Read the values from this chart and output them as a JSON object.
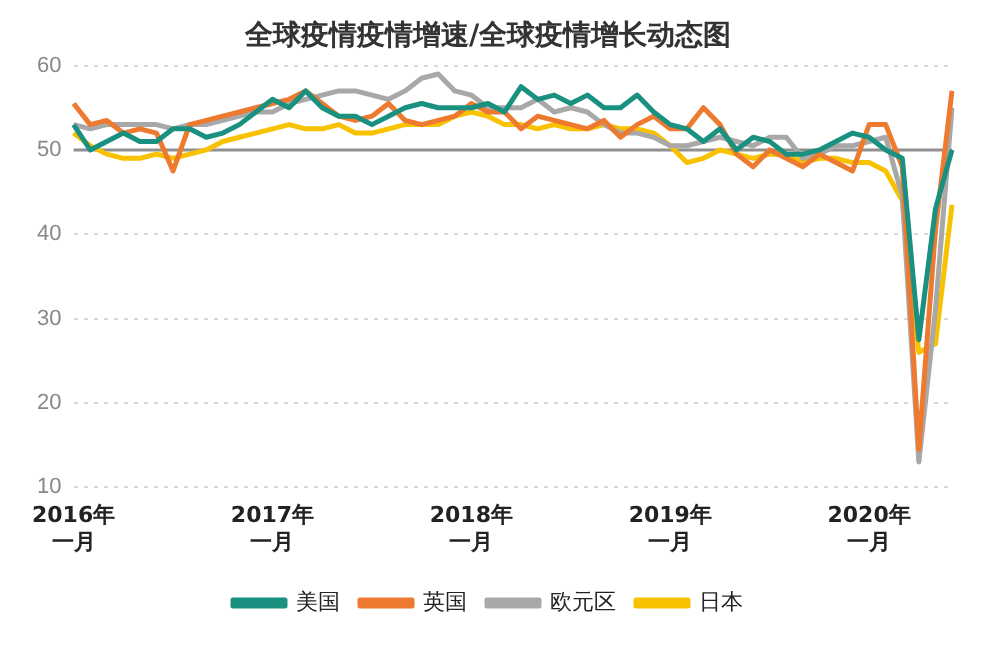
{
  "chart_data": {
    "type": "line",
    "title": "全球疫情疫情增速/全球疫情增长动态图",
    "categories": [
      "2016年一月",
      null,
      null,
      null,
      null,
      null,
      null,
      null,
      null,
      null,
      null,
      null,
      "2017年一月",
      null,
      null,
      null,
      null,
      null,
      null,
      null,
      null,
      null,
      null,
      null,
      "2018年一月",
      null,
      null,
      null,
      null,
      null,
      null,
      null,
      null,
      null,
      null,
      null,
      "2019年一月",
      null,
      null,
      null,
      null,
      null,
      null,
      null,
      null,
      null,
      null,
      null,
      "2020年一月",
      null,
      null,
      null,
      null,
      null
    ],
    "series": [
      {
        "name": "美国",
        "color": "#1a9080",
        "values": [
          53,
          50,
          51,
          52,
          51,
          51,
          52.5,
          52.5,
          51.5,
          52,
          53,
          54.5,
          56,
          55,
          57,
          55,
          54,
          54,
          53,
          54,
          55,
          55.5,
          55,
          55,
          55,
          55.5,
          54.5,
          57.5,
          56,
          56.5,
          55.5,
          56.5,
          55,
          55,
          56.5,
          54.5,
          53,
          52.5,
          51,
          52.5,
          50,
          51.5,
          51,
          49.5,
          49.5,
          50,
          51,
          52,
          51.5,
          50,
          49,
          27.5,
          43,
          50
        ]
      },
      {
        "name": "英国",
        "color": "#ee7a30",
        "values": [
          55.5,
          53,
          53.5,
          52,
          52.5,
          52,
          47.5,
          53,
          53.5,
          54,
          54.5,
          55,
          55.5,
          56,
          57,
          55.5,
          54,
          53.5,
          54,
          55.5,
          53.5,
          53,
          53.5,
          54,
          55.5,
          54.5,
          54.5,
          52.5,
          54,
          53.5,
          53,
          52.5,
          53.5,
          51.5,
          53,
          54,
          52.5,
          52.5,
          55,
          53,
          49.5,
          48,
          50,
          49,
          48,
          49.5,
          48.5,
          47.5,
          53,
          53,
          48,
          14.5,
          40.5,
          57
        ]
      },
      {
        "name": "欧元区",
        "color": "#a8a8a8",
        "values": [
          53,
          52.5,
          53,
          53,
          53,
          53,
          52.5,
          53,
          53,
          53.5,
          54,
          54.5,
          54.5,
          55.5,
          56,
          56.5,
          57,
          57,
          56.5,
          56,
          57,
          58.5,
          59,
          57,
          56.5,
          55,
          55,
          55,
          56,
          54.5,
          55,
          54.5,
          53,
          52,
          52,
          51.5,
          50.5,
          50.5,
          51,
          51.5,
          51,
          50.5,
          51.5,
          51.5,
          49,
          49.5,
          50.5,
          50.5,
          51,
          51.5,
          44.5,
          13,
          31,
          55
        ]
      },
      {
        "name": "日本",
        "color": "#f8c200",
        "values": [
          52,
          50.5,
          49.5,
          49,
          49,
          49.5,
          49,
          49.5,
          50,
          51,
          51.5,
          52,
          52.5,
          53,
          52.5,
          52.5,
          53,
          52,
          52,
          52.5,
          53,
          53,
          53,
          54,
          54.5,
          54,
          53,
          53,
          52.5,
          53,
          52.5,
          52.5,
          53,
          52.5,
          52.5,
          52,
          50.5,
          48.5,
          49,
          50,
          49.5,
          49,
          49.5,
          49.5,
          48.5,
          49,
          49,
          48.5,
          48.5,
          47.5,
          44,
          26,
          27,
          43.5
        ]
      }
    ],
    "ylim": [
      10,
      60
    ],
    "yticks": [
      10,
      20,
      30,
      40,
      50,
      60
    ],
    "grid": "y",
    "legend": "bottom",
    "ref_lines": [
      {
        "axis": "y",
        "value": 50,
        "color": "#909090"
      }
    ],
    "line_style": "solid",
    "marker": "none"
  }
}
